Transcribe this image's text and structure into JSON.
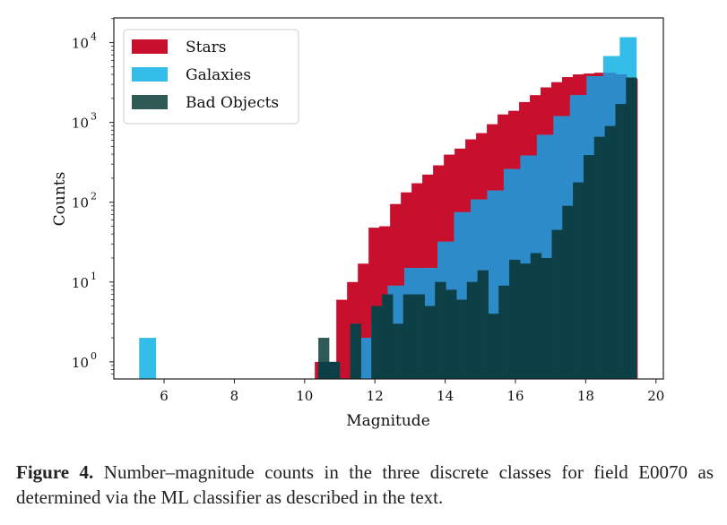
{
  "chart_data": {
    "type": "bar",
    "subtype": "histogram",
    "xlabel": "Magnitude",
    "ylabel": "Counts",
    "xlim": [
      4.57,
      20.21
    ],
    "ylim": [
      0.61,
      20400
    ],
    "yscale": "log",
    "xticks": [
      6,
      8,
      10,
      12,
      14,
      16,
      18,
      20
    ],
    "yticks": [
      {
        "value": 1,
        "base": "10",
        "exp": "0"
      },
      {
        "value": 10,
        "base": "10",
        "exp": "1"
      },
      {
        "value": 100,
        "base": "10",
        "exp": "2"
      },
      {
        "value": 1000,
        "base": "10",
        "exp": "3"
      },
      {
        "value": 10000,
        "base": "10",
        "exp": "4"
      }
    ],
    "legend_position": "top-left",
    "grid": false,
    "series": [
      {
        "name": "Stars",
        "color": "#c8102e",
        "bin_start": 10.29,
        "bin_width": 0.306,
        "values": [
          1,
          1,
          6,
          10,
          17,
          48,
          50,
          95,
          133,
          173,
          222,
          290,
          395,
          470,
          614,
          735,
          950,
          1260,
          1400,
          1800,
          2200,
          2750,
          3200,
          3700,
          4000,
          4100,
          4200,
          4200,
          4000,
          3500
        ]
      },
      {
        "name": "Galaxies",
        "color": "#35bdea",
        "overlap_color": "#2e8bc9",
        "bin_start": 5.29,
        "bin_width": 0.4717,
        "values": [
          2,
          0,
          0,
          0,
          0,
          0,
          0,
          0,
          0,
          0,
          0,
          0,
          0,
          2,
          3,
          9,
          15,
          15,
          32,
          75,
          108,
          140,
          260,
          385,
          700,
          1200,
          2200,
          3800,
          6800,
          11700
        ]
      },
      {
        "name": "Bad Objects",
        "color": "#2f5a55",
        "overlap_color": "#0b3d45",
        "bin_start": 10.39,
        "bin_width": 0.302,
        "values": [
          2,
          1,
          0,
          3,
          0,
          5,
          7,
          3,
          7,
          7,
          5,
          10,
          8,
          6,
          10,
          14,
          4,
          9,
          19,
          17,
          23,
          20,
          45,
          90,
          177,
          390,
          660,
          900,
          1700,
          3650
        ]
      }
    ]
  },
  "caption": {
    "label": "Figure 4.",
    "text": "Number–magnitude counts in the three discrete classes for field E0070 as determined via the ML classifier as described in the text."
  }
}
